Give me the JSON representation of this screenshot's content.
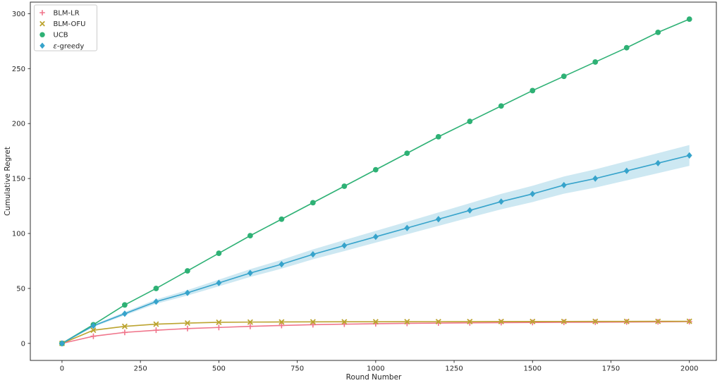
{
  "figure": {
    "background": "#ffffff",
    "spine_color": "#2e2e2e",
    "tick_color": "#262626",
    "legend_border_color": "#cccccc"
  },
  "chart_data": {
    "type": "line",
    "title": "",
    "xlabel": "Round Number",
    "ylabel": "Cumulative Regret",
    "grid": false,
    "legend_position": "upper-left",
    "xlim": [
      -101,
      2086
    ],
    "ylim": [
      -15.5,
      310.5
    ],
    "xticks": [
      0,
      250,
      500,
      750,
      1000,
      1250,
      1500,
      1750,
      2000
    ],
    "yticks": [
      0,
      50,
      100,
      150,
      200,
      250,
      300
    ],
    "x": [
      0,
      100,
      200,
      300,
      400,
      500,
      600,
      700,
      800,
      900,
      1000,
      1100,
      1200,
      1300,
      1400,
      1500,
      1600,
      1700,
      1800,
      1900,
      2000
    ],
    "series": [
      {
        "name": "BLM-LR",
        "marker": "plus",
        "color": "#f0758b",
        "values": [
          0,
          6.5,
          10,
          12,
          13.5,
          14.5,
          15.5,
          16.3,
          17,
          17.5,
          17.9,
          18.2,
          18.5,
          18.7,
          18.9,
          19.0,
          19.15,
          19.3,
          19.45,
          19.6,
          19.8
        ]
      },
      {
        "name": "BLM-OFU",
        "marker": "x",
        "color": "#bca430",
        "values": [
          0,
          12,
          15.5,
          17.5,
          18.5,
          19.2,
          19.4,
          19.5,
          19.6,
          19.65,
          19.7,
          19.75,
          19.8,
          19.85,
          19.9,
          19.9,
          19.95,
          20,
          20,
          20.05,
          20.1
        ]
      },
      {
        "name": "UCB",
        "marker": "circle",
        "color": "#2eb175",
        "values": [
          0,
          17,
          35,
          50,
          66,
          82,
          98,
          113,
          128,
          143,
          158,
          173,
          188,
          202,
          216,
          230,
          243,
          256,
          269,
          283,
          295
        ]
      },
      {
        "name": "ε-greedy",
        "marker": "diamond",
        "color": "#36a3cb",
        "band_color": "#36a3cb",
        "band_opacity": 0.25,
        "band_half_width": [
          0.5,
          1,
          1.5,
          2,
          2.5,
          3,
          3.5,
          4,
          4.5,
          5,
          5.3,
          5.7,
          6.1,
          6.5,
          7,
          7.4,
          7.8,
          8.3,
          8.7,
          9.1,
          9.5
        ],
        "values": [
          0,
          16,
          27,
          38,
          46,
          55,
          64,
          72,
          81,
          89,
          97,
          105,
          113,
          121,
          129,
          136,
          144,
          150,
          157,
          164,
          171
        ]
      }
    ]
  }
}
